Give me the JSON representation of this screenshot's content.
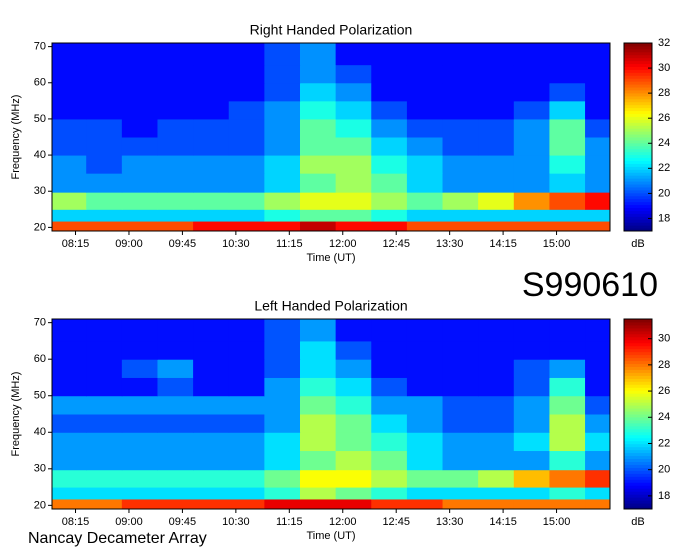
{
  "chart_data": [
    {
      "type": "heatmap",
      "title": "Right Handed Polarization",
      "xlabel": "Time (UT)",
      "ylabel": "Frequency (MHz)",
      "x": [
        8.15,
        8.65,
        9.15,
        9.65,
        10.15,
        10.65,
        11.15,
        11.65,
        12.15,
        12.65,
        13.15,
        13.65,
        14.15,
        14.65,
        15.15,
        15.65
      ],
      "y": [
        20.5,
        23,
        27,
        32.5,
        37.5,
        42.5,
        47.5,
        52.5,
        57.5,
        62.5,
        67.5
      ],
      "z": [
        [
          29,
          29,
          29,
          29,
          30,
          30,
          30,
          31,
          30,
          30,
          29,
          29,
          29,
          29,
          29,
          29
        ],
        [
          22,
          22,
          22,
          22,
          22,
          22,
          23,
          24,
          24,
          23,
          22,
          22,
          22,
          22,
          22,
          22
        ],
        [
          25,
          24,
          24,
          24,
          24,
          24,
          25,
          26,
          26,
          25,
          24,
          25,
          26,
          28,
          29,
          30
        ],
        [
          21,
          21,
          21,
          21,
          21,
          21,
          22,
          24,
          25,
          24,
          22,
          21,
          21,
          21,
          22,
          21
        ],
        [
          21,
          20,
          21,
          21,
          21,
          21,
          22,
          25,
          25,
          23,
          22,
          21,
          21,
          21,
          23,
          21
        ],
        [
          20,
          20,
          20,
          20,
          20,
          20,
          21,
          24,
          24,
          22,
          21,
          20,
          20,
          21,
          24,
          21
        ],
        [
          20,
          20,
          19,
          20,
          20,
          20,
          21,
          24,
          23,
          21,
          20,
          20,
          20,
          21,
          24,
          20
        ],
        [
          19,
          19,
          19,
          19,
          19,
          20,
          21,
          23,
          22,
          20,
          19,
          19,
          19,
          20,
          22,
          19
        ],
        [
          19,
          19,
          19,
          19,
          19,
          19,
          20,
          22,
          21,
          19,
          19,
          19,
          19,
          19,
          20,
          19
        ],
        [
          19,
          19,
          19,
          19,
          19,
          19,
          20,
          21,
          20,
          19,
          19,
          19,
          19,
          19,
          19,
          19
        ],
        [
          19,
          19,
          19,
          19,
          19,
          19,
          20,
          21,
          19,
          19,
          19,
          19,
          19,
          19,
          19,
          19
        ]
      ],
      "xlim": [
        7.92,
        15.75
      ],
      "ylim": [
        19,
        71
      ],
      "xticks": [
        {
          "value": 8.25,
          "label": "08:15"
        },
        {
          "value": 9,
          "label": "09:00"
        },
        {
          "value": 9.75,
          "label": "09:45"
        },
        {
          "value": 10.5,
          "label": "10:30"
        },
        {
          "value": 11.25,
          "label": "11:15"
        },
        {
          "value": 12,
          "label": "12:00"
        },
        {
          "value": 12.75,
          "label": "12:45"
        },
        {
          "value": 13.5,
          "label": "13:30"
        },
        {
          "value": 14.25,
          "label": "14:15"
        },
        {
          "value": 15,
          "label": "15:00"
        }
      ],
      "yticks": [
        20,
        30,
        40,
        50,
        60,
        70
      ],
      "zlim": [
        17,
        32
      ],
      "zticks": [
        18,
        20,
        22,
        24,
        26,
        28,
        30,
        32
      ],
      "zlabel": "dB",
      "colormap": "jet"
    },
    {
      "type": "heatmap",
      "title": "Left Handed Polarization",
      "xlabel": "Time (UT)",
      "ylabel": "Frequency (MHz)",
      "x": [
        8.15,
        8.65,
        9.15,
        9.65,
        10.15,
        10.65,
        11.15,
        11.65,
        12.15,
        12.65,
        13.15,
        13.65,
        14.15,
        14.65,
        15.15,
        15.65
      ],
      "y": [
        20.5,
        23,
        27,
        32.5,
        37.5,
        42.5,
        47.5,
        52.5,
        57.5,
        62.5,
        67.5
      ],
      "z": [
        [
          28,
          28,
          29,
          29,
          29,
          29,
          30,
          30,
          30,
          29,
          29,
          28,
          28,
          28,
          28,
          28
        ],
        [
          22,
          22,
          22,
          22,
          22,
          22,
          23,
          25,
          24,
          23,
          22,
          22,
          22,
          22,
          23,
          22
        ],
        [
          23,
          23,
          23,
          23,
          23,
          23,
          24,
          26,
          26,
          25,
          24,
          24,
          25,
          27,
          28,
          29
        ],
        [
          21,
          21,
          21,
          21,
          21,
          21,
          22,
          24,
          25,
          24,
          22,
          21,
          21,
          21,
          23,
          21
        ],
        [
          21,
          21,
          21,
          21,
          21,
          21,
          22,
          25,
          24,
          23,
          22,
          21,
          21,
          22,
          25,
          22
        ],
        [
          20,
          20,
          20,
          20,
          20,
          20,
          21,
          25,
          24,
          22,
          21,
          20,
          20,
          21,
          25,
          21
        ],
        [
          21,
          21,
          21,
          21,
          21,
          21,
          21,
          24,
          23,
          21,
          21,
          20,
          20,
          21,
          24,
          20
        ],
        [
          19,
          19,
          19,
          20,
          19,
          19,
          21,
          23,
          22,
          20,
          19,
          19,
          19,
          20,
          23,
          19
        ],
        [
          19,
          19,
          20,
          21,
          19,
          19,
          20,
          22,
          21,
          19,
          19,
          19,
          19,
          20,
          21,
          19
        ],
        [
          19,
          19,
          19,
          19,
          19,
          19,
          20,
          22,
          20,
          19,
          19,
          19,
          19,
          19,
          19,
          19
        ],
        [
          19,
          19,
          19,
          19,
          19,
          19,
          20,
          21,
          19,
          19,
          19,
          19,
          19,
          19,
          19,
          19
        ]
      ],
      "xlim": [
        7.92,
        15.75
      ],
      "ylim": [
        19,
        71
      ],
      "xticks": [
        {
          "value": 8.25,
          "label": "08:15"
        },
        {
          "value": 9,
          "label": "09:00"
        },
        {
          "value": 9.75,
          "label": "09:45"
        },
        {
          "value": 10.5,
          "label": "10:30"
        },
        {
          "value": 11.25,
          "label": "11:15"
        },
        {
          "value": 12,
          "label": "12:00"
        },
        {
          "value": 12.75,
          "label": "12:45"
        },
        {
          "value": 13.5,
          "label": "13:30"
        },
        {
          "value": 14.25,
          "label": "14:15"
        },
        {
          "value": 15,
          "label": "15:00"
        }
      ],
      "yticks": [
        20,
        30,
        40,
        50,
        60,
        70
      ],
      "zlim": [
        17,
        31.5
      ],
      "zticks": [
        18,
        20,
        22,
        24,
        26,
        28,
        30
      ],
      "zlabel": "dB",
      "colormap": "jet"
    }
  ],
  "date_code": "S990610",
  "footer": "Nancay Decameter Array"
}
